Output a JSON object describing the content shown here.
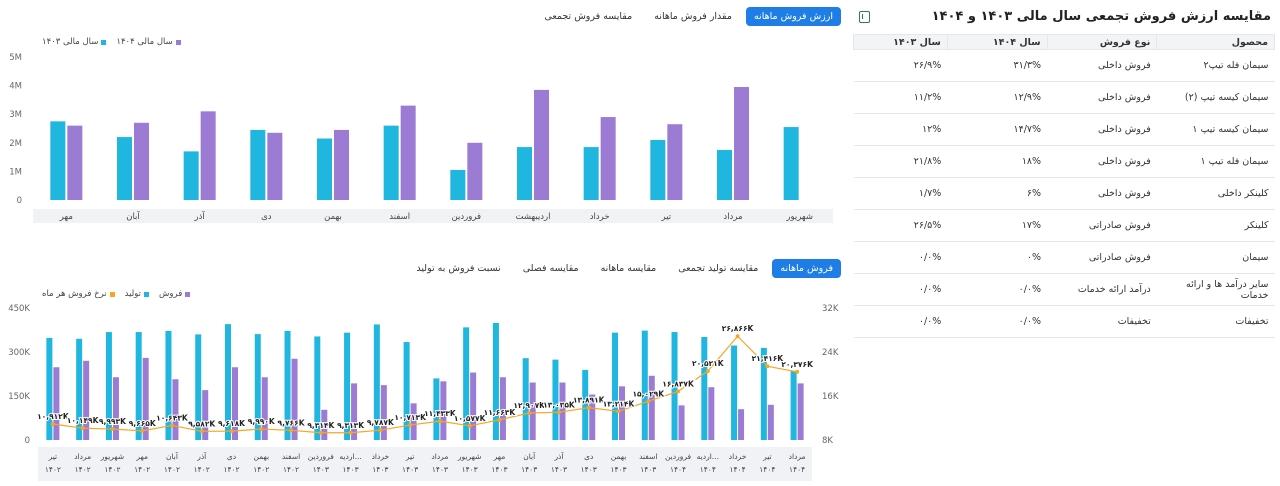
{
  "table_panel": {
    "title": "مقایسه ارزش فروش تجمعی سال مالی ۱۴۰۳ و ۱۴۰۴",
    "export_icon": "excel-icon",
    "headers": [
      "محصول",
      "نوع فروش",
      "سال ۱۴۰۴",
      "سال ۱۴۰۳"
    ],
    "rows": [
      [
        "سیمان فله تیپ۲",
        "فروش داخلی",
        "۳۱/۳%",
        "۲۶/۹%"
      ],
      [
        "سیمان کیسه تیپ (۲)",
        "فروش داخلی",
        "۱۲/۹%",
        "۱۱/۲%"
      ],
      [
        "سیمان کیسه تیپ ۱",
        "فروش داخلی",
        "۱۴/۷%",
        "۱۲%"
      ],
      [
        "سیمان فله تیپ ۱",
        "فروش داخلی",
        "۱۸%",
        "۲۱/۸%"
      ],
      [
        "کلینکر داخلی",
        "فروش داخلی",
        "۶%",
        "۱/۷%"
      ],
      [
        "کلینکر",
        "فروش صادراتی",
        "۱۷%",
        "۲۶/۵%"
      ],
      [
        "سیمان",
        "فروش صادراتی",
        "۰%",
        "۰/۰%"
      ],
      [
        "سایر درآمد ها و ارائه خدمات",
        "درآمد ارائه خدمات",
        "۰/۰%",
        "۰/۰%"
      ],
      [
        "تخفیفات",
        "تخفیفات",
        "۰/۰%",
        "۰/۰%"
      ]
    ]
  },
  "top_tabs": [
    {
      "label": "ارزش فروش ماهانه",
      "active": true
    },
    {
      "label": "مقدار فروش ماهانه",
      "active": false
    },
    {
      "label": "مقایسه فروش تجمعی",
      "active": false
    }
  ],
  "bottom_tabs": [
    {
      "label": "فروش ماهانه",
      "active": true
    },
    {
      "label": "مقایسه تولید تجمعی",
      "active": false
    },
    {
      "label": "مقایسه ماهانه",
      "active": false
    },
    {
      "label": "مقایسه فصلی",
      "active": false
    },
    {
      "label": "نسبت فروش به تولید",
      "active": false
    }
  ],
  "colors": {
    "cyan": "#1fb6e0",
    "purple": "#9b7bd4",
    "orange": "#f5a623",
    "axis": "#999999",
    "band": "#f0f2f5"
  },
  "chart_data": [
    {
      "type": "bar",
      "legend": [
        "سال مالی ۱۴۰۴",
        "سال مالی ۱۴۰۳"
      ],
      "y_ticks": [
        "0",
        "1M",
        "2M",
        "3M",
        "4M",
        "5M"
      ],
      "ylim": [
        0,
        5000000
      ],
      "categories": [
        "مهر",
        "آبان",
        "آذر",
        "دی",
        "بهمن",
        "اسفند",
        "فروردین",
        "اردیبهشت",
        "خرداد",
        "تیر",
        "مرداد",
        "شهریور"
      ],
      "series": [
        {
          "name": "سال مالی ۱۴۰۳",
          "color": "#1fb6e0",
          "values": [
            2750000,
            2200000,
            1700000,
            2450000,
            2150000,
            2600000,
            1050000,
            1850000,
            1850000,
            2100000,
            1750000,
            2550000
          ]
        },
        {
          "name": "سال مالی ۱۴۰۴",
          "color": "#9b7bd4",
          "values": [
            2600000,
            2700000,
            3100000,
            2350000,
            2450000,
            3300000,
            2000000,
            3850000,
            2900000,
            2650000,
            3950000,
            null
          ]
        }
      ]
    },
    {
      "type": "bar",
      "legend": [
        "فروش",
        "تولید",
        "نرخ فروش هر ماه"
      ],
      "y_ticks_left": [
        "0",
        "150K",
        "300K",
        "450K"
      ],
      "y_ticks_right": [
        "8K",
        "16K",
        "24K",
        "32K"
      ],
      "ylim_left": [
        0,
        450000
      ],
      "ylim_right": [
        8000,
        32000
      ],
      "categories": [
        {
          "month": "تیر",
          "year": "۱۴۰۲"
        },
        {
          "month": "مرداد",
          "year": "۱۴۰۲"
        },
        {
          "month": "شهریور",
          "year": "۱۴۰۲"
        },
        {
          "month": "مهر",
          "year": "۱۴۰۲"
        },
        {
          "month": "آبان",
          "year": "۱۴۰۲"
        },
        {
          "month": "آذر",
          "year": "۱۴۰۲"
        },
        {
          "month": "دی",
          "year": "۱۴۰۲"
        },
        {
          "month": "بهمن",
          "year": "۱۴۰۲"
        },
        {
          "month": "اسفند",
          "year": "۱۴۰۲"
        },
        {
          "month": "فروردین",
          "year": "۱۴۰۳"
        },
        {
          "month": "اردیه...",
          "year": "۱۴۰۳"
        },
        {
          "month": "خرداد",
          "year": "۱۴۰۳"
        },
        {
          "month": "تیر",
          "year": "۱۴۰۳"
        },
        {
          "month": "مرداد",
          "year": "۱۴۰۳"
        },
        {
          "month": "شهریور",
          "year": "۱۴۰۳"
        },
        {
          "month": "مهر",
          "year": "۱۴۰۳"
        },
        {
          "month": "آبان",
          "year": "۱۴۰۳"
        },
        {
          "month": "آذر",
          "year": "۱۴۰۳"
        },
        {
          "month": "دی",
          "year": "۱۴۰۳"
        },
        {
          "month": "بهمن",
          "year": "۱۴۰۳"
        },
        {
          "month": "اسفند",
          "year": "۱۴۰۳"
        },
        {
          "month": "فروردین",
          "year": "۱۴۰۴"
        },
        {
          "month": "اردیه...",
          "year": "۱۴۰۴"
        },
        {
          "month": "خرداد",
          "year": "۱۴۰۴"
        },
        {
          "month": "تیر",
          "year": "۱۴۰۴"
        },
        {
          "month": "مرداد",
          "year": "۱۴۰۴"
        }
      ],
      "series": [
        {
          "name": "تولید",
          "color": "#1fb6e0",
          "values": [
            348000,
            345000,
            368000,
            368000,
            372000,
            360000,
            395000,
            361000,
            372000,
            353000,
            366000,
            394000,
            334000,
            210000,
            384000,
            399000,
            279000,
            274000,
            239000,
            366000,
            373000,
            368000,
            351000,
            322000,
            314000,
            236000
          ]
        },
        {
          "name": "فروش",
          "color": "#9b7bd4",
          "values": [
            248000,
            270000,
            214000,
            280000,
            207000,
            170000,
            248000,
            214000,
            277000,
            103000,
            193000,
            187000,
            125000,
            200000,
            230000,
            214000,
            196000,
            196000,
            155000,
            183000,
            219000,
            118000,
            180000,
            105000,
            120000,
            193000
          ]
        },
        {
          "name": "نرخ فروش هر ماه",
          "color": "#f5a623",
          "values": [
            10912,
            10149,
            9993,
            9665,
            10643,
            9582,
            9618,
            9990,
            9766,
            9314,
            9313,
            9787,
            10713,
            11433,
            10577,
            11663,
            12907,
            13035,
            13891,
            13214,
            15029,
            16837,
            20521,
            26866,
            21416,
            20376
          ]
        }
      ],
      "line_labels": [
        "۱۰,۹۱۲K",
        "۱۰,۱۴۹K",
        "۹,۹۹۳K",
        "۹,۶۶۵K",
        "۱۰,۶۴۳K",
        "۹,۵۸۲K",
        "۹,۶۱۸K",
        "۹,۹۹۰K",
        "۹,۷۶۶K",
        "۹,۳۱۴K",
        "۹,۳۱۳K",
        "۹,۷۸۷K",
        "۱۰,۷۱۳K",
        "۱۱,۴۳۳K",
        "۱۰,۵۷۷K",
        "۱۱,۶۶۳K",
        "۱۲,۹۰۷K",
        "۱۳,۰۳۵K",
        "۱۳,۸۹۱K",
        "۱۳,۲۱۴K",
        "۱۵,۰۲۹K",
        "۱۶,۸۳۷K",
        "۲۰,۵۲۱K",
        "۲۶,۸۶۶K",
        "۲۱,۴۱۶K",
        "۲۰,۳۷۶K"
      ]
    }
  ]
}
